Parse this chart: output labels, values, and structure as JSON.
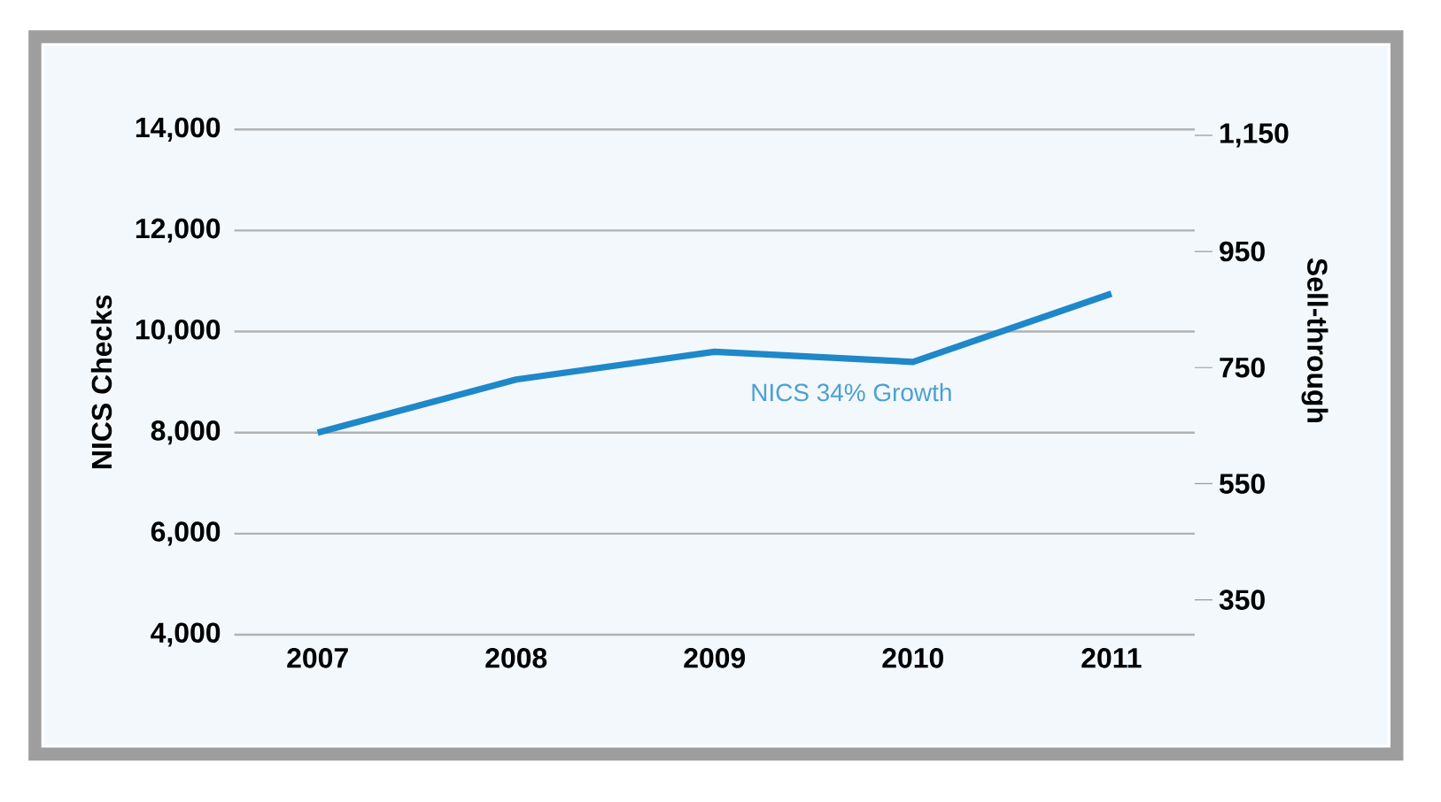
{
  "chart_data": {
    "type": "line",
    "categories": [
      "2007",
      "2008",
      "2009",
      "2010",
      "2011"
    ],
    "series": [
      {
        "name": "NICS 34% Growth",
        "color": "#1e88c8",
        "values": [
          8000,
          9050,
          9600,
          9400,
          10750
        ]
      }
    ],
    "ylabel": "NICS Checks",
    "y2label": "Sell-through",
    "ylim": [
      4000,
      14000
    ],
    "yticks": [
      {
        "value": 4000,
        "label": "4,000"
      },
      {
        "value": 6000,
        "label": "6,000"
      },
      {
        "value": 8000,
        "label": "8,000"
      },
      {
        "value": 10000,
        "label": "10,000"
      },
      {
        "value": 12000,
        "label": "12,000"
      },
      {
        "value": 14000,
        "label": "14,000"
      }
    ],
    "y2lim": [
      290,
      1160
    ],
    "y2ticks": [
      350,
      550,
      750,
      950,
      {
        "value": 1150,
        "label": "1,150"
      }
    ],
    "grid": "y",
    "marker": "none",
    "line_style": "solid",
    "legend": false
  }
}
